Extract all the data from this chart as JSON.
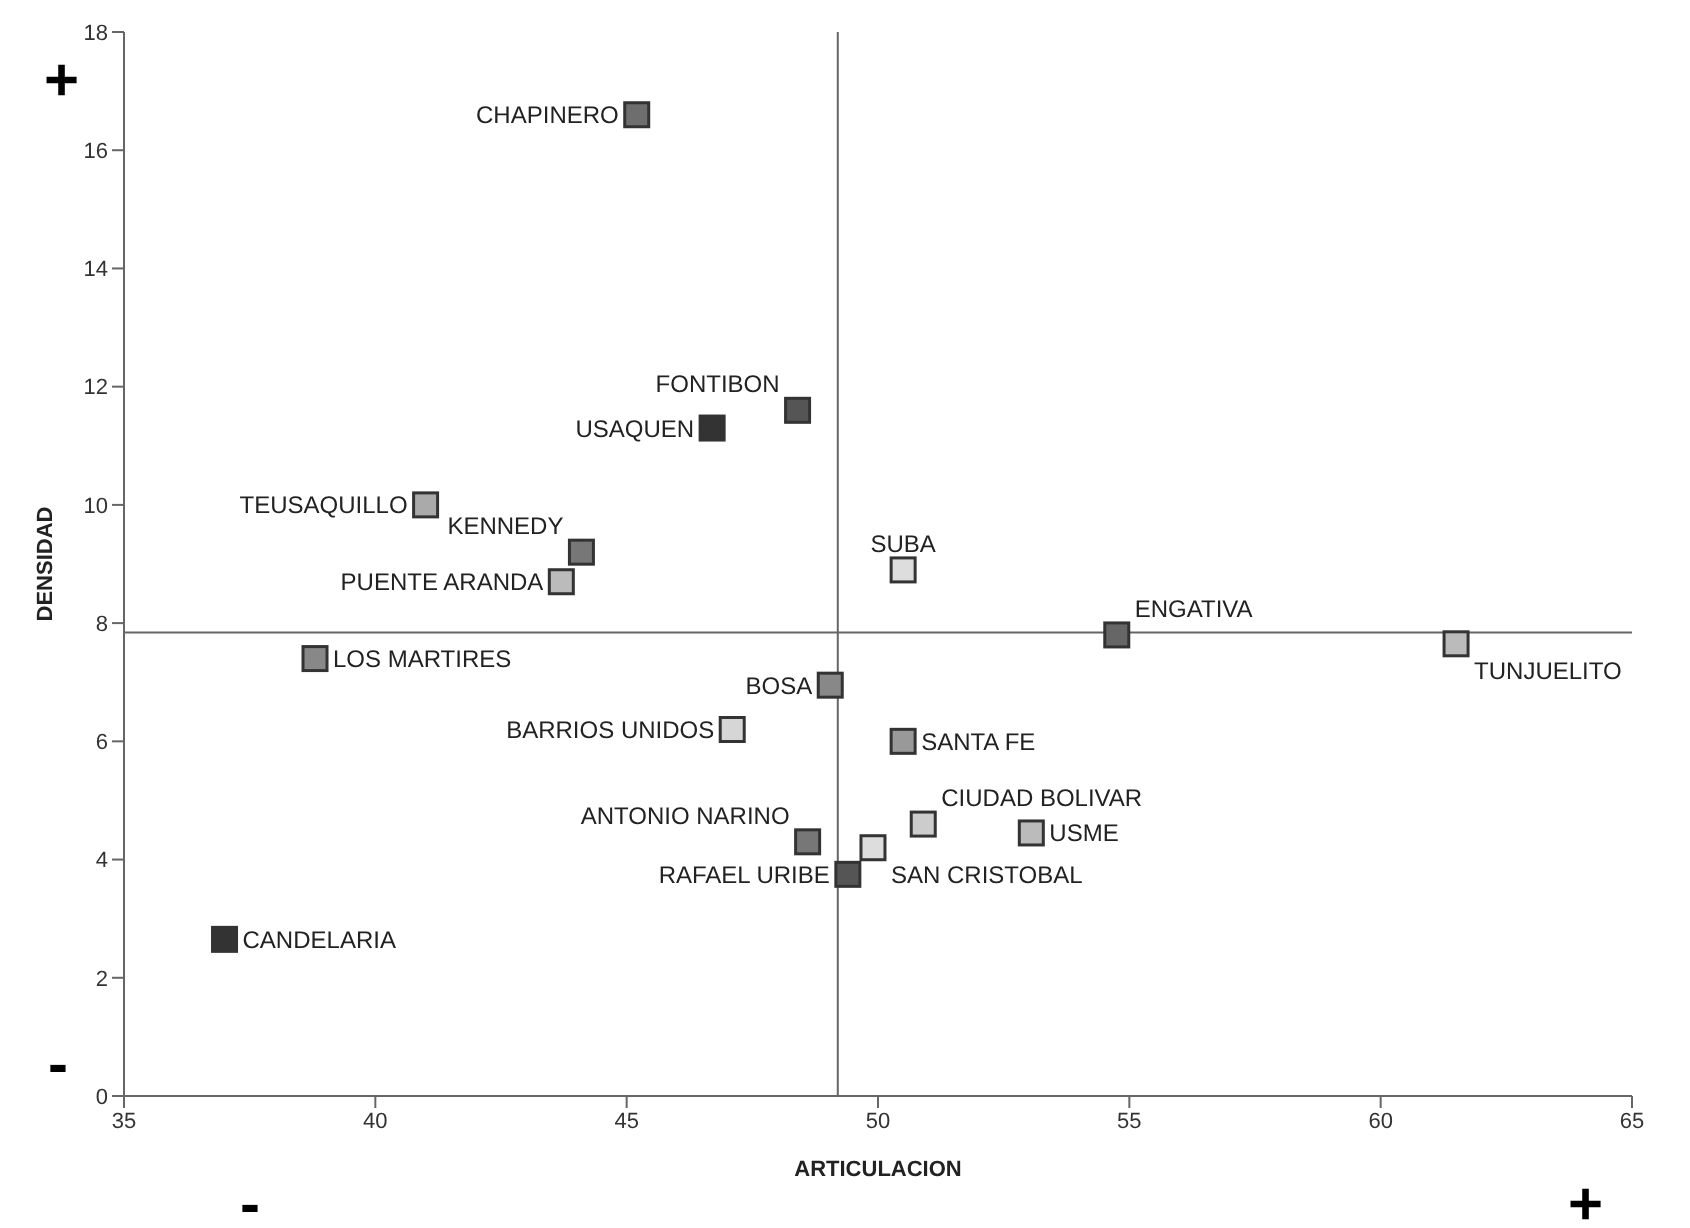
{
  "chart_data": {
    "type": "scatter",
    "xlabel": "ARTICULACION",
    "ylabel": "DENSIDAD",
    "marker": "square",
    "x": [
      45.2,
      48.4,
      46.7,
      41.0,
      44.1,
      43.7,
      50.5,
      54.75,
      61.5,
      38.8,
      49.05,
      47.1,
      50.5,
      48.6,
      50.9,
      49.9,
      53.05,
      49.4,
      37.0
    ],
    "values": [
      16.6,
      11.6,
      11.3,
      10.0,
      9.2,
      8.7,
      8.9,
      7.8,
      7.65,
      7.4,
      6.95,
      6.2,
      6.0,
      4.3,
      4.6,
      4.2,
      4.45,
      3.75,
      2.65
    ],
    "colors": [
      "#6e6e6e",
      "#555555",
      "#333333",
      "#aaaaaa",
      "#777777",
      "#bbbbbb",
      "#dddddd",
      "#666666",
      "#bbbbbb",
      "#888888",
      "#888888",
      "#d6d6d6",
      "#999999",
      "#777777",
      "#cccccc",
      "#dddddd",
      "#bbbbbb",
      "#555555",
      "#333333"
    ],
    "xlim": [
      35,
      65
    ],
    "xticks": [
      35,
      40,
      45,
      50,
      55,
      60,
      65
    ],
    "ylim": [
      0,
      18
    ],
    "yticks": [
      0,
      2,
      4,
      6,
      8,
      10,
      12,
      14,
      16,
      18
    ],
    "ref_lines": [
      {
        "axis": "x",
        "value": 49.2
      },
      {
        "axis": "y",
        "value": 7.84
      }
    ],
    "annotations": [
      {
        "text": "CHAPINERO",
        "x": 45.2,
        "y": 16.6
      },
      {
        "text": "FONTIBON",
        "x": 48.4,
        "y": 11.6
      },
      {
        "text": "USAQUEN",
        "x": 46.7,
        "y": 11.3
      },
      {
        "text": "TEUSAQUILLO",
        "x": 41.0,
        "y": 10.0
      },
      {
        "text": "KENNEDY",
        "x": 44.1,
        "y": 9.2
      },
      {
        "text": "PUENTE ARANDA",
        "x": 43.7,
        "y": 8.7
      },
      {
        "text": "SUBA",
        "x": 50.5,
        "y": 8.9
      },
      {
        "text": "ENGATIVA",
        "x": 54.75,
        "y": 7.8
      },
      {
        "text": "TUNJUELITO",
        "x": 61.5,
        "y": 7.65
      },
      {
        "text": "LOS MARTIRES",
        "x": 38.8,
        "y": 7.4
      },
      {
        "text": "BOSA",
        "x": 49.05,
        "y": 6.95
      },
      {
        "text": "BARRIOS UNIDOS",
        "x": 47.1,
        "y": 6.2
      },
      {
        "text": "SANTA FE",
        "x": 50.5,
        "y": 6.0
      },
      {
        "text": "ANTONIO NARINO",
        "x": 48.6,
        "y": 4.3
      },
      {
        "text": "CIUDAD BOLIVAR",
        "x": 50.9,
        "y": 4.6
      },
      {
        "text": "SAN CRISTOBAL",
        "x": 49.9,
        "y": 4.2
      },
      {
        "text": "USME",
        "x": 53.05,
        "y": 4.45
      },
      {
        "text": "RAFAEL URIBE",
        "x": 49.4,
        "y": 3.75
      },
      {
        "text": "CANDELARIA",
        "x": 37.0,
        "y": 2.65
      },
      "+",
      "-",
      "-",
      "+"
    ]
  }
}
